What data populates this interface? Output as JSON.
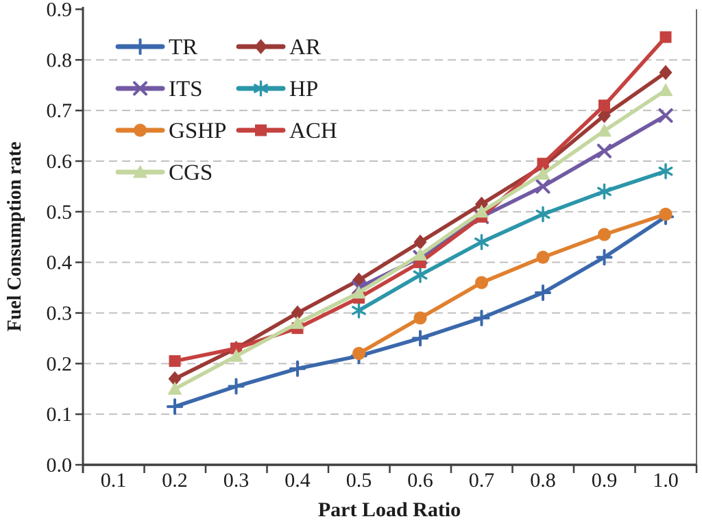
{
  "chart_data": {
    "type": "line",
    "title": "",
    "xlabel": "Part Load Ratio",
    "ylabel": "Fuel Consumption rate",
    "x": [
      0.2,
      0.3,
      0.4,
      0.5,
      0.6,
      0.7,
      0.8,
      0.9,
      1.0
    ],
    "x_tick_labels": [
      "0.1",
      "0.2",
      "0.3",
      "0.4",
      "0.5",
      "0.6",
      "0.7",
      "0.8",
      "0.9",
      "1.0"
    ],
    "y_tick_labels": [
      "0.0",
      "0.1",
      "0.2",
      "0.3",
      "0.4",
      "0.5",
      "0.6",
      "0.7",
      "0.8",
      "0.9"
    ],
    "xlim": [
      0.05,
      1.05
    ],
    "ylim": [
      0.0,
      0.9
    ],
    "grid": "horizontal-dashed",
    "grid_color": "#c0c0c0",
    "axis_color": "#3f3f3f",
    "text_color": "#1c1c1c",
    "legend_position": "top-left-inside",
    "series": [
      {
        "name": "TR",
        "color": "#3B68AC",
        "marker": "plus",
        "values": [
          0.115,
          0.155,
          0.19,
          0.215,
          0.25,
          0.29,
          0.34,
          0.41,
          0.49
        ]
      },
      {
        "name": "AR",
        "color": "#9C3A36",
        "marker": "diamond",
        "values": [
          0.17,
          0.23,
          0.3,
          0.365,
          0.44,
          0.515,
          0.59,
          0.69,
          0.775
        ]
      },
      {
        "name": "ITS",
        "color": "#715AA3",
        "marker": "x",
        "values": [
          null,
          null,
          null,
          0.35,
          0.41,
          0.49,
          0.55,
          0.62,
          0.69
        ]
      },
      {
        "name": "HP",
        "color": "#2B96A9",
        "marker": "asterisk",
        "values": [
          null,
          null,
          null,
          0.305,
          0.375,
          0.44,
          0.495,
          0.54,
          0.58
        ]
      },
      {
        "name": "GSHP",
        "color": "#E0802F",
        "marker": "circle",
        "values": [
          null,
          null,
          null,
          0.22,
          0.29,
          0.36,
          0.41,
          0.455,
          0.495
        ]
      },
      {
        "name": "ACH",
        "color": "#C5413F",
        "marker": "square",
        "values": [
          0.205,
          0.23,
          0.27,
          0.33,
          0.4,
          0.49,
          0.595,
          0.71,
          0.845
        ]
      },
      {
        "name": "CGS",
        "color": "#C4D79F",
        "marker": "triangle",
        "values": [
          0.15,
          0.215,
          0.28,
          0.34,
          0.415,
          0.5,
          0.575,
          0.66,
          0.74
        ]
      }
    ],
    "legend_labels": [
      "TR",
      "AR",
      "ITS",
      "HP",
      "GSHP",
      "ACH",
      "CGS"
    ]
  }
}
